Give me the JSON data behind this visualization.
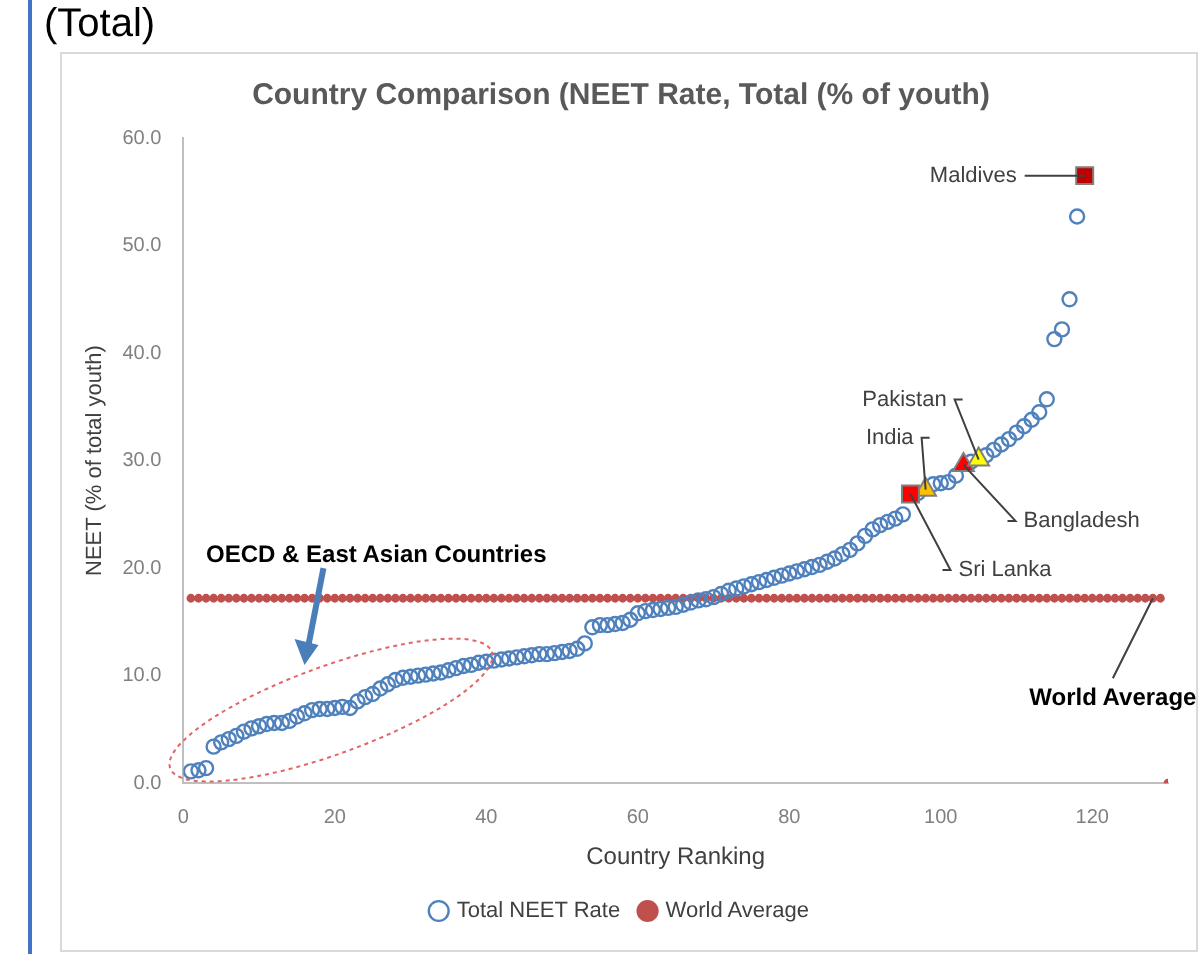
{
  "chart_data": {
    "type": "scatter",
    "title": "Country Comparison (NEET Rate, Total (% of youth)",
    "xlabel": "Country Ranking",
    "ylabel": "NEET (% of total youth)",
    "xlim": [
      0,
      130
    ],
    "xticks": [
      0,
      20,
      40,
      60,
      80,
      100,
      120
    ],
    "ylim": [
      0,
      60
    ],
    "yticks": [
      {
        "value": 0,
        "label": "0.0"
      },
      {
        "value": 10,
        "label": "10.0"
      },
      {
        "value": 20,
        "label": "20.0"
      },
      {
        "value": 30,
        "label": "30.0"
      },
      {
        "value": 40,
        "label": "40.0"
      },
      {
        "value": 50,
        "label": "50.0"
      },
      {
        "value": 60,
        "label": "60.0"
      }
    ],
    "grid": false,
    "legend": "bottom",
    "series": [
      {
        "name": "Total NEET Rate",
        "color": "#4f81bd",
        "marker": "circle",
        "x": [
          1,
          2,
          3,
          4,
          5,
          6,
          7,
          8,
          9,
          10,
          11,
          12,
          13,
          14,
          15,
          16,
          17,
          18,
          19,
          20,
          21,
          22,
          23,
          24,
          25,
          26,
          27,
          28,
          29,
          30,
          31,
          32,
          33,
          34,
          35,
          36,
          37,
          38,
          39,
          40,
          41,
          42,
          43,
          44,
          45,
          46,
          47,
          48,
          49,
          50,
          51,
          52,
          53,
          54,
          55,
          56,
          57,
          58,
          59,
          60,
          61,
          62,
          63,
          64,
          65,
          66,
          67,
          68,
          69,
          70,
          71,
          72,
          73,
          74,
          75,
          76,
          77,
          78,
          79,
          80,
          81,
          82,
          83,
          84,
          85,
          86,
          87,
          88,
          89,
          90,
          91,
          92,
          93,
          94,
          95,
          96,
          97,
          98,
          99,
          100,
          101,
          102,
          103,
          104,
          105,
          106,
          107,
          108,
          109,
          110,
          111,
          112,
          113,
          114,
          115,
          116,
          117,
          118
        ],
        "values": [
          1.1,
          1.2,
          1.4,
          3.4,
          3.8,
          4.1,
          4.4,
          4.8,
          5.1,
          5.3,
          5.5,
          5.6,
          5.6,
          5.8,
          6.2,
          6.5,
          6.8,
          6.9,
          6.9,
          7.0,
          7.1,
          7.0,
          7.6,
          8.0,
          8.3,
          8.8,
          9.2,
          9.6,
          9.8,
          9.9,
          10.0,
          10.1,
          10.2,
          10.3,
          10.5,
          10.7,
          10.9,
          11.0,
          11.2,
          11.3,
          11.4,
          11.5,
          11.6,
          11.7,
          11.8,
          11.9,
          12.0,
          12.0,
          12.1,
          12.2,
          12.3,
          12.5,
          13.0,
          14.5,
          14.7,
          14.7,
          14.8,
          14.9,
          15.2,
          15.8,
          16.0,
          16.1,
          16.2,
          16.3,
          16.4,
          16.6,
          16.8,
          17.0,
          17.1,
          17.3,
          17.6,
          17.9,
          18.1,
          18.3,
          18.5,
          18.7,
          18.9,
          19.1,
          19.3,
          19.5,
          19.7,
          19.9,
          20.1,
          20.3,
          20.6,
          20.9,
          21.3,
          21.7,
          22.3,
          23.0,
          23.6,
          24.0,
          24.3,
          24.6,
          25.0,
          null,
          27.0,
          null,
          27.8,
          27.9,
          28.0,
          28.6,
          null,
          29.9,
          null,
          30.5,
          31.0,
          31.5,
          32.0,
          32.6,
          33.2,
          33.8,
          34.5,
          35.7,
          41.3,
          42.2,
          45.0,
          52.7
        ]
      },
      {
        "name": "World Average",
        "color": "#c0504d",
        "marker": "circle",
        "x": [
          1,
          2,
          3,
          4,
          5,
          6,
          7,
          8,
          9,
          10,
          11,
          12,
          13,
          14,
          15,
          16,
          17,
          18,
          19,
          20,
          21,
          22,
          23,
          24,
          25,
          26,
          27,
          28,
          29,
          30,
          31,
          32,
          33,
          34,
          35,
          36,
          37,
          38,
          39,
          40,
          41,
          42,
          43,
          44,
          45,
          46,
          47,
          48,
          49,
          50,
          51,
          52,
          53,
          54,
          55,
          56,
          57,
          58,
          59,
          60,
          61,
          62,
          63,
          64,
          65,
          66,
          67,
          68,
          69,
          70,
          71,
          72,
          73,
          74,
          75,
          76,
          77,
          78,
          79,
          80,
          81,
          82,
          83,
          84,
          85,
          86,
          87,
          88,
          89,
          90,
          91,
          92,
          93,
          94,
          95,
          96,
          97,
          98,
          99,
          100,
          101,
          102,
          103,
          104,
          105,
          106,
          107,
          108,
          109,
          110,
          111,
          112,
          113,
          114,
          115,
          116,
          117,
          118,
          119,
          120,
          121,
          122,
          123,
          124,
          125,
          126,
          127,
          128,
          129,
          130
        ],
        "values": [
          17.2,
          17.2,
          17.2,
          17.2,
          17.2,
          17.2,
          17.2,
          17.2,
          17.2,
          17.2,
          17.2,
          17.2,
          17.2,
          17.2,
          17.2,
          17.2,
          17.2,
          17.2,
          17.2,
          17.2,
          17.2,
          17.2,
          17.2,
          17.2,
          17.2,
          17.2,
          17.2,
          17.2,
          17.2,
          17.2,
          17.2,
          17.2,
          17.2,
          17.2,
          17.2,
          17.2,
          17.2,
          17.2,
          17.2,
          17.2,
          17.2,
          17.2,
          17.2,
          17.2,
          17.2,
          17.2,
          17.2,
          17.2,
          17.2,
          17.2,
          17.2,
          17.2,
          17.2,
          17.2,
          17.2,
          17.2,
          17.2,
          17.2,
          17.2,
          17.2,
          17.2,
          17.2,
          17.2,
          17.2,
          17.2,
          17.2,
          17.2,
          17.2,
          17.2,
          17.2,
          17.2,
          17.2,
          17.2,
          17.2,
          17.2,
          17.2,
          17.2,
          17.2,
          17.2,
          17.2,
          17.2,
          17.2,
          17.2,
          17.2,
          17.2,
          17.2,
          17.2,
          17.2,
          17.2,
          17.2,
          17.2,
          17.2,
          17.2,
          17.2,
          17.2,
          17.2,
          17.2,
          17.2,
          17.2,
          17.2,
          17.2,
          17.2,
          17.2,
          17.2,
          17.2,
          17.2,
          17.2,
          17.2,
          17.2,
          17.2,
          17.2,
          17.2,
          17.2,
          17.2,
          17.2,
          17.2,
          17.2,
          17.2,
          17.2,
          17.2,
          17.2,
          17.2,
          17.2,
          17.2,
          17.2,
          17.2,
          17.2,
          17.2,
          17.2,
          0
        ]
      },
      {
        "marker": "square",
        "x": [
          96,
          119
        ],
        "values": [
          26.9,
          56.5
        ],
        "colors": [
          "#ff0000",
          "#c00000"
        ]
      },
      {
        "marker": "triangle",
        "x": [
          98,
          103,
          105
        ],
        "values": [
          27.3,
          29.6,
          30.1
        ],
        "colors": [
          "#ffc000",
          "#ff0000",
          "#ffff00"
        ]
      }
    ],
    "annotations": [
      "(Total)",
      "OECD & East Asian Countries",
      {
        "text": "Maldives",
        "x": 119,
        "y": 56.5
      },
      {
        "text": "India",
        "x": 98,
        "y": 27.3
      },
      {
        "text": "Pakistan",
        "x": 105,
        "y": 30.1
      },
      {
        "text": "Bangladesh",
        "x": 103,
        "y": 29.6
      },
      {
        "text": "Sri Lanka",
        "x": 96,
        "y": 26.9
      },
      {
        "text": "World Average",
        "x": 128,
        "y": 17.2
      }
    ]
  }
}
